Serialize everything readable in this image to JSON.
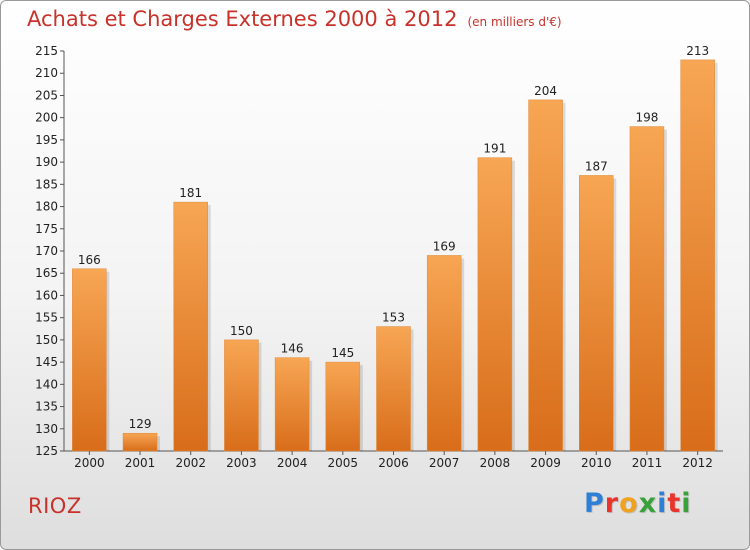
{
  "header": {
    "title": "Achats et Charges Externes 2000 à 2012",
    "subtitle": "(en milliers d'€)"
  },
  "footer": {
    "commune": "RIOZ",
    "brand": "Proxiti"
  },
  "colors": {
    "title": "#c8322a",
    "bar_top": "#f7a654",
    "bar_bottom": "#d86d1a",
    "logo_letters": [
      "#2e7fd6",
      "#e8342c",
      "#f0a11e",
      "#3aa13a",
      "#2e7fd6",
      "#e8342c",
      "#3aa13a"
    ]
  },
  "chart_data": {
    "type": "bar",
    "title": "Achats et Charges Externes 2000 à 2012",
    "subtitle": "(en milliers d'€)",
    "categories": [
      "2000",
      "2001",
      "2002",
      "2003",
      "2004",
      "2005",
      "2006",
      "2007",
      "2008",
      "2009",
      "2010",
      "2011",
      "2012"
    ],
    "values": [
      166,
      129,
      181,
      150,
      146,
      145,
      153,
      169,
      191,
      204,
      187,
      198,
      213
    ],
    "ylim": [
      125,
      215
    ],
    "ytick_step": 5,
    "grid": false,
    "data_labels": true
  }
}
